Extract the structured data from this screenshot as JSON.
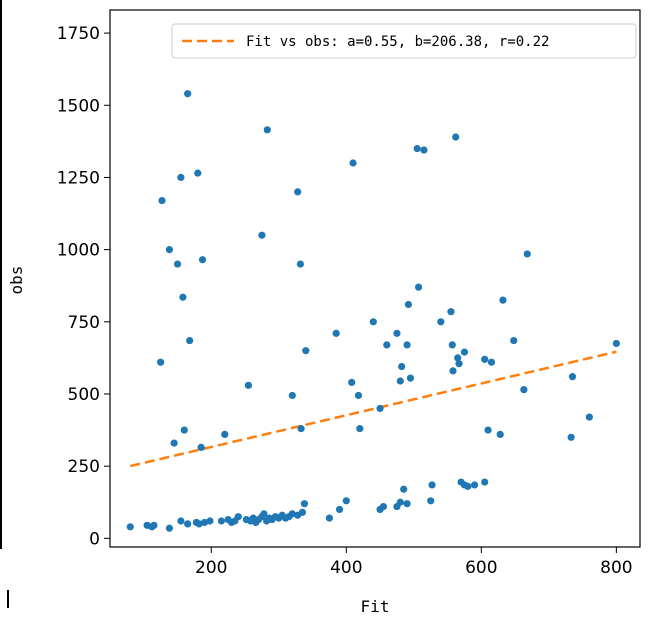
{
  "chart_data": {
    "type": "scatter",
    "title": "",
    "xlabel": "Fit",
    "ylabel": "obs",
    "xlim": [
      50,
      835
    ],
    "ylim": [
      -30,
      1830
    ],
    "xticks": [
      200,
      400,
      600,
      800
    ],
    "yticks": [
      0,
      250,
      500,
      750,
      1000,
      1250,
      1500,
      1750
    ],
    "grid": false,
    "legend_position": "top-right",
    "colors": {
      "points": "#1f77b4",
      "fit_line": "#ff7f0e"
    },
    "fit_line": {
      "label": "Fit vs obs: a=0.55, b=206.38, r=0.22",
      "a": 0.55,
      "b": 206.38,
      "x_range": [
        80,
        800
      ]
    },
    "series": [
      {
        "points": [
          [
            80,
            40
          ],
          [
            105,
            45
          ],
          [
            112,
            40
          ],
          [
            115,
            45
          ],
          [
            138,
            35
          ],
          [
            155,
            60
          ],
          [
            165,
            50
          ],
          [
            178,
            55
          ],
          [
            182,
            50
          ],
          [
            190,
            55
          ],
          [
            198,
            60
          ],
          [
            215,
            60
          ],
          [
            225,
            65
          ],
          [
            230,
            55
          ],
          [
            235,
            60
          ],
          [
            240,
            75
          ],
          [
            252,
            65
          ],
          [
            258,
            60
          ],
          [
            262,
            70
          ],
          [
            266,
            55
          ],
          [
            270,
            65
          ],
          [
            275,
            75
          ],
          [
            278,
            85
          ],
          [
            282,
            60
          ],
          [
            286,
            70
          ],
          [
            290,
            65
          ],
          [
            295,
            75
          ],
          [
            300,
            70
          ],
          [
            305,
            80
          ],
          [
            310,
            70
          ],
          [
            315,
            75
          ],
          [
            320,
            85
          ],
          [
            328,
            80
          ],
          [
            335,
            90
          ],
          [
            338,
            120
          ],
          [
            375,
            70
          ],
          [
            390,
            100
          ],
          [
            400,
            130
          ],
          [
            450,
            100
          ],
          [
            455,
            110
          ],
          [
            475,
            110
          ],
          [
            480,
            125
          ],
          [
            485,
            170
          ],
          [
            490,
            120
          ],
          [
            525,
            130
          ],
          [
            527,
            185
          ],
          [
            570,
            195
          ],
          [
            575,
            185
          ],
          [
            580,
            180
          ],
          [
            590,
            185
          ],
          [
            605,
            195
          ],
          [
            125,
            610
          ],
          [
            127,
            1170
          ],
          [
            138,
            1000
          ],
          [
            145,
            330
          ],
          [
            150,
            950
          ],
          [
            155,
            1250
          ],
          [
            158,
            835
          ],
          [
            160,
            375
          ],
          [
            165,
            1540
          ],
          [
            168,
            685
          ],
          [
            180,
            1265
          ],
          [
            185,
            315
          ],
          [
            187,
            965
          ],
          [
            220,
            360
          ],
          [
            255,
            530
          ],
          [
            275,
            1050
          ],
          [
            283,
            1415
          ],
          [
            320,
            495
          ],
          [
            328,
            1200
          ],
          [
            332,
            950
          ],
          [
            333,
            380
          ],
          [
            340,
            650
          ],
          [
            385,
            710
          ],
          [
            408,
            540
          ],
          [
            410,
            1300
          ],
          [
            418,
            495
          ],
          [
            420,
            380
          ],
          [
            440,
            750
          ],
          [
            450,
            450
          ],
          [
            460,
            670
          ],
          [
            475,
            710
          ],
          [
            480,
            545
          ],
          [
            482,
            595
          ],
          [
            490,
            670
          ],
          [
            492,
            810
          ],
          [
            495,
            555
          ],
          [
            505,
            1350
          ],
          [
            507,
            870
          ],
          [
            515,
            1345
          ],
          [
            540,
            750
          ],
          [
            555,
            785
          ],
          [
            557,
            670
          ],
          [
            558,
            580
          ],
          [
            562,
            1390
          ],
          [
            565,
            625
          ],
          [
            567,
            605
          ],
          [
            575,
            645
          ],
          [
            605,
            620
          ],
          [
            610,
            375
          ],
          [
            615,
            610
          ],
          [
            628,
            360
          ],
          [
            632,
            825
          ],
          [
            648,
            685
          ],
          [
            663,
            515
          ],
          [
            668,
            985
          ],
          [
            733,
            350
          ],
          [
            735,
            560
          ],
          [
            760,
            420
          ],
          [
            800,
            675
          ]
        ]
      }
    ]
  }
}
